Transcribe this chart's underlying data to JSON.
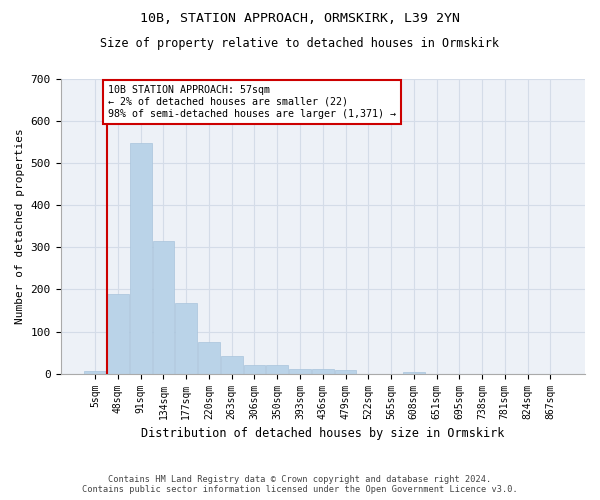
{
  "title1": "10B, STATION APPROACH, ORMSKIRK, L39 2YN",
  "title2": "Size of property relative to detached houses in Ormskirk",
  "xlabel": "Distribution of detached houses by size in Ormskirk",
  "ylabel": "Number of detached properties",
  "footnote": "Contains HM Land Registry data © Crown copyright and database right 2024.\nContains public sector information licensed under the Open Government Licence v3.0.",
  "bin_labels": [
    "5sqm",
    "48sqm",
    "91sqm",
    "134sqm",
    "177sqm",
    "220sqm",
    "263sqm",
    "306sqm",
    "350sqm",
    "393sqm",
    "436sqm",
    "479sqm",
    "522sqm",
    "565sqm",
    "608sqm",
    "651sqm",
    "695sqm",
    "738sqm",
    "781sqm",
    "824sqm",
    "867sqm"
  ],
  "bar_values": [
    7,
    190,
    548,
    315,
    168,
    75,
    42,
    20,
    20,
    12,
    12,
    8,
    0,
    0,
    5,
    0,
    0,
    0,
    0,
    0,
    0
  ],
  "bar_color": "#bad3e8",
  "bar_edge_color": "#a8c4dc",
  "grid_color": "#d4dce8",
  "background_color": "#edf1f7",
  "marker_line_color": "#cc0000",
  "annotation_text": "10B STATION APPROACH: 57sqm\n← 2% of detached houses are smaller (22)\n98% of semi-detached houses are larger (1,371) →",
  "annotation_box_color": "#cc0000",
  "ylim": [
    0,
    700
  ],
  "yticks": [
    0,
    100,
    200,
    300,
    400,
    500,
    600,
    700
  ]
}
